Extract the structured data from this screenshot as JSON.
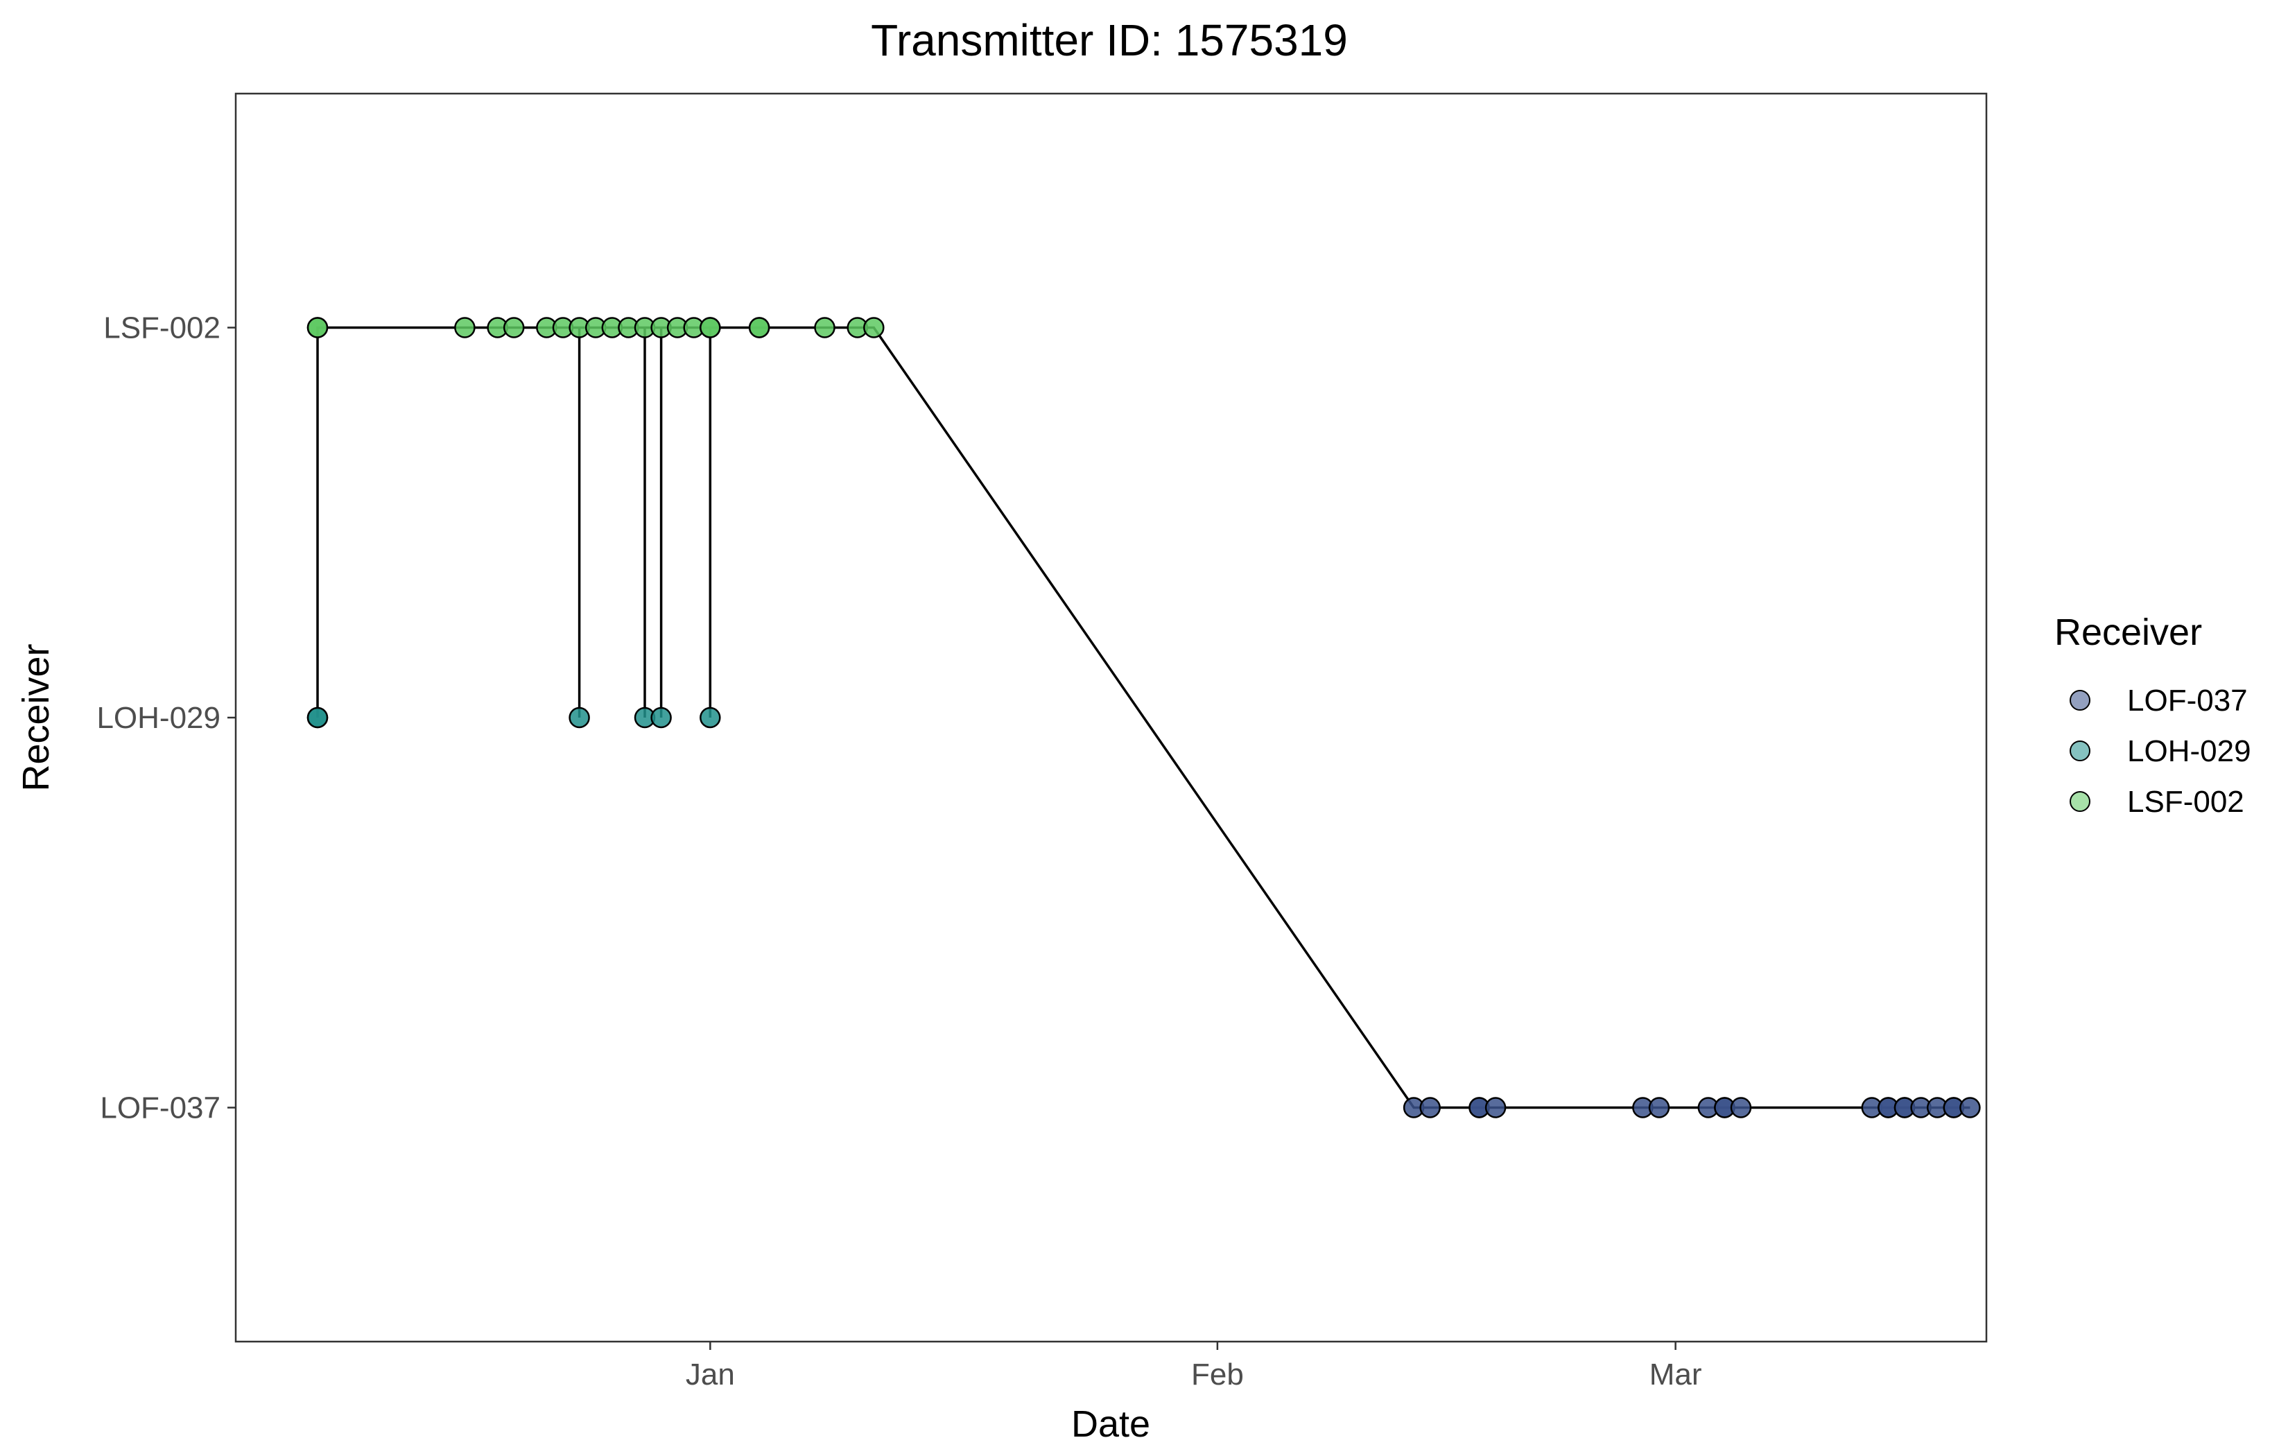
{
  "chart_data": {
    "type": "scatter",
    "title": "Transmitter ID: 1575319",
    "xlabel": "Date",
    "ylabel": "Receiver",
    "x_ticks": [
      {
        "label": "Jan",
        "date": "2021-01-01"
      },
      {
        "label": "Feb",
        "date": "2021-02-01"
      },
      {
        "label": "Mar",
        "date": "2021-03-01"
      }
    ],
    "y_categories": [
      "LOF-037",
      "LOH-029",
      "LSF-002"
    ],
    "xlim": [
      "2020-12-03",
      "2021-03-20"
    ],
    "grid": false,
    "legend": {
      "title": "Receiver",
      "position": "right",
      "entries": [
        "LOF-037",
        "LOH-029",
        "LSF-002"
      ]
    },
    "series": [
      {
        "name": "LOF-037",
        "color": "#3B528B",
        "points": [
          [
            "2021-02-13",
            "LOF-037"
          ],
          [
            "2021-02-14",
            "LOF-037"
          ],
          [
            "2021-02-17",
            "LOF-037"
          ],
          [
            "2021-02-17",
            "LOF-037"
          ],
          [
            "2021-02-18",
            "LOF-037"
          ],
          [
            "2021-02-27",
            "LOF-037"
          ],
          [
            "2021-02-28",
            "LOF-037"
          ],
          [
            "2021-03-03",
            "LOF-037"
          ],
          [
            "2021-03-04",
            "LOF-037"
          ],
          [
            "2021-03-04",
            "LOF-037"
          ],
          [
            "2021-03-05",
            "LOF-037"
          ],
          [
            "2021-03-13",
            "LOF-037"
          ],
          [
            "2021-03-14",
            "LOF-037"
          ],
          [
            "2021-03-14",
            "LOF-037"
          ],
          [
            "2021-03-15",
            "LOF-037"
          ],
          [
            "2021-03-15",
            "LOF-037"
          ],
          [
            "2021-03-16",
            "LOF-037"
          ],
          [
            "2021-03-17",
            "LOF-037"
          ],
          [
            "2021-03-18",
            "LOF-037"
          ],
          [
            "2021-03-18",
            "LOF-037"
          ],
          [
            "2021-03-19",
            "LOF-037"
          ]
        ]
      },
      {
        "name": "LOH-029",
        "color": "#21908C",
        "points": [
          [
            "2020-12-08",
            "LOH-029"
          ],
          [
            "2020-12-08",
            "LOH-029"
          ],
          [
            "2020-12-24",
            "LOH-029"
          ],
          [
            "2020-12-28",
            "LOH-029"
          ],
          [
            "2020-12-29",
            "LOH-029"
          ],
          [
            "2021-01-01",
            "LOH-029"
          ]
        ]
      },
      {
        "name": "LSF-002",
        "color": "#5EC962",
        "points": [
          [
            "2020-12-08",
            "LSF-002"
          ],
          [
            "2020-12-08",
            "LSF-002"
          ],
          [
            "2020-12-17",
            "LSF-002"
          ],
          [
            "2020-12-19",
            "LSF-002"
          ],
          [
            "2020-12-20",
            "LSF-002"
          ],
          [
            "2020-12-22",
            "LSF-002"
          ],
          [
            "2020-12-23",
            "LSF-002"
          ],
          [
            "2020-12-24",
            "LSF-002"
          ],
          [
            "2020-12-25",
            "LSF-002"
          ],
          [
            "2020-12-26",
            "LSF-002"
          ],
          [
            "2020-12-27",
            "LSF-002"
          ],
          [
            "2020-12-28",
            "LSF-002"
          ],
          [
            "2020-12-29",
            "LSF-002"
          ],
          [
            "2020-12-30",
            "LSF-002"
          ],
          [
            "2020-12-31",
            "LSF-002"
          ],
          [
            "2021-01-01",
            "LSF-002"
          ],
          [
            "2021-01-01",
            "LSF-002"
          ],
          [
            "2021-01-04",
            "LSF-002"
          ],
          [
            "2021-01-04",
            "LSF-002"
          ],
          [
            "2021-01-08",
            "LSF-002"
          ],
          [
            "2021-01-10",
            "LSF-002"
          ],
          [
            "2021-01-11",
            "LSF-002"
          ]
        ]
      }
    ],
    "track": [
      [
        "2020-12-08",
        "LSF-002"
      ],
      [
        "2020-12-08",
        "LOH-029"
      ],
      [
        "2020-12-08",
        "LSF-002"
      ],
      [
        "2020-12-17",
        "LSF-002"
      ],
      [
        "2020-12-24",
        "LSF-002"
      ],
      [
        "2020-12-24",
        "LOH-029"
      ],
      [
        "2020-12-24",
        "LSF-002"
      ],
      [
        "2020-12-28",
        "LSF-002"
      ],
      [
        "2020-12-28",
        "LOH-029"
      ],
      [
        "2020-12-28",
        "LSF-002"
      ],
      [
        "2020-12-29",
        "LSF-002"
      ],
      [
        "2020-12-29",
        "LOH-029"
      ],
      [
        "2020-12-29",
        "LSF-002"
      ],
      [
        "2021-01-01",
        "LSF-002"
      ],
      [
        "2021-01-01",
        "LOH-029"
      ],
      [
        "2021-01-01",
        "LSF-002"
      ],
      [
        "2021-01-11",
        "LSF-002"
      ],
      [
        "2021-02-13",
        "LOF-037"
      ],
      [
        "2021-03-19",
        "LOF-037"
      ]
    ],
    "track_color": "#000000"
  }
}
